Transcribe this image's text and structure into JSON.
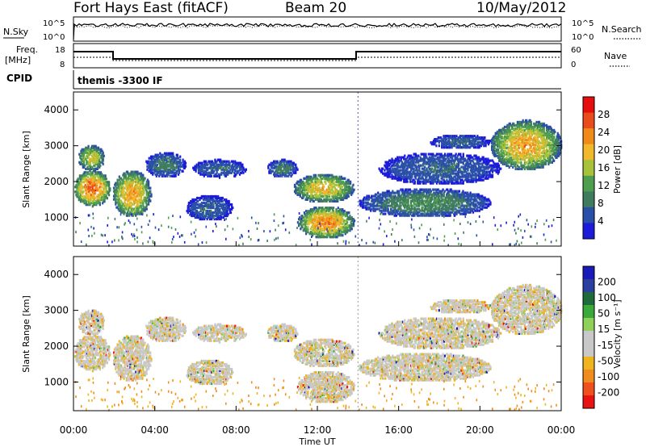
{
  "header": {
    "station": "Fort Hays East (fitACF)",
    "beam": "Beam 20",
    "date": "10/May/2012"
  },
  "top_panels": {
    "noise": {
      "left_label": "N.Sky",
      "right_label": "N.Search",
      "left_ticks": [
        "10^5",
        "10^0"
      ],
      "right_ticks": [
        "10^5",
        "10^0"
      ]
    },
    "freq": {
      "left_label_1": "Freq.",
      "left_label_2": "[MHz]",
      "left_ticks": [
        "18",
        "8"
      ],
      "right_label": "Nave",
      "right_ticks": [
        "60",
        "0"
      ]
    },
    "cpid": {
      "label": "CPID",
      "value": "themis -3300 IF"
    }
  },
  "colors": {
    "power": [
      "#1b1bd9",
      "#2a4fa8",
      "#3f7b5f",
      "#4f9e4f",
      "#a7c23a",
      "#f0b82a",
      "#f08a1a",
      "#ea4b1a",
      "#e60d0d"
    ],
    "velocity": [
      "#1a1ab8",
      "#2a3f9e",
      "#1e6a3a",
      "#3aa83a",
      "#8ed05a",
      "#c8c8c8",
      "#c8c8c8",
      "#f0b41e",
      "#f08c1e",
      "#f0501e",
      "#e81414"
    ]
  },
  "chart_data": [
    {
      "type": "heatmap",
      "name": "power",
      "ylabel": "Slant Range [km]",
      "yticks": [
        "1000",
        "2000",
        "3000",
        "4000"
      ],
      "ylim": [
        200,
        4500
      ],
      "xlim_hours": [
        0,
        24
      ],
      "colorbar_label": "Power [dB]",
      "colorbar_ticks": [
        "4",
        "8",
        "12",
        "16",
        "20",
        "24",
        "28"
      ],
      "colorbar_range": [
        0,
        30
      ],
      "echo_bands": [
        {
          "t": [
            0.0,
            1.8
          ],
          "r": [
            1300,
            2300
          ],
          "peak": 28
        },
        {
          "t": [
            0.2,
            1.5
          ],
          "r": [
            2300,
            3000
          ],
          "peak": 20
        },
        {
          "t": [
            1.9,
            3.8
          ],
          "r": [
            1000,
            2300
          ],
          "peak": 24
        },
        {
          "t": [
            3.5,
            5.5
          ],
          "r": [
            2100,
            2800
          ],
          "peak": 10
        },
        {
          "t": [
            5.5,
            7.8
          ],
          "r": [
            900,
            1600
          ],
          "peak": 8
        },
        {
          "t": [
            5.8,
            8.5
          ],
          "r": [
            2100,
            2600
          ],
          "peak": 8
        },
        {
          "t": [
            9.5,
            11.0
          ],
          "r": [
            2100,
            2600
          ],
          "peak": 10
        },
        {
          "t": [
            10.8,
            13.8
          ],
          "r": [
            1400,
            2200
          ],
          "peak": 22
        },
        {
          "t": [
            11.0,
            13.8
          ],
          "r": [
            400,
            1300
          ],
          "peak": 26
        },
        {
          "t": [
            14.0,
            20.5
          ],
          "r": [
            1000,
            1800
          ],
          "peak": 12
        },
        {
          "t": [
            15.0,
            21.0
          ],
          "r": [
            1900,
            2800
          ],
          "peak": 8
        },
        {
          "t": [
            17.5,
            20.5
          ],
          "r": [
            2900,
            3300
          ],
          "peak": 8
        },
        {
          "t": [
            20.5,
            24.0
          ],
          "r": [
            2300,
            3700
          ],
          "peak": 24
        }
      ]
    },
    {
      "type": "heatmap",
      "name": "velocity",
      "ylabel": "Slant Range [km]",
      "yticks": [
        "1000",
        "2000",
        "3000",
        "4000"
      ],
      "ylim": [
        200,
        4500
      ],
      "xlabel": "Time UT",
      "xticks": [
        "00:00",
        "04:00",
        "08:00",
        "12:00",
        "16:00",
        "20:00",
        "00:00"
      ],
      "colorbar_label": "Velocity [m s⁻¹]",
      "colorbar_ticks": [
        "200",
        "100",
        "50",
        "15",
        "-15",
        "-50",
        "-100",
        "-200"
      ],
      "colorbar_range": [
        -250,
        250
      ],
      "dominant_value": 0,
      "secondary_value": -60
    }
  ]
}
